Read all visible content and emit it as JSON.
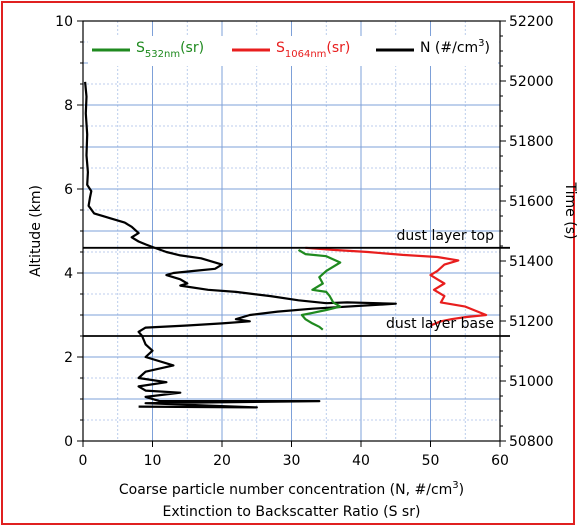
{
  "chart_data": {
    "type": "line",
    "xlabel": "Coarse particle number concentration (N, #/cm",
    "xlabel_sup": "3",
    "xlabel_suffix": ")",
    "xlabel2": "Extinction to Backscatter Ratio (S sr)",
    "ylabel": "Altitude (km)",
    "y2label": "Time (s)",
    "xlim": [
      0,
      60
    ],
    "ylim": [
      0,
      10
    ],
    "y2lim": [
      50800,
      52200
    ],
    "xticks": [
      0,
      10,
      20,
      30,
      40,
      50,
      60
    ],
    "yticks": [
      0,
      2,
      4,
      6,
      8,
      10
    ],
    "y2ticks": [
      50800,
      51000,
      51200,
      51400,
      51600,
      51800,
      52000,
      52200
    ],
    "grid": true,
    "legend_position": "top",
    "legend": [
      {
        "main": "S",
        "sub": "532nm",
        "tail": "(sr)",
        "color": "#1f8a1f"
      },
      {
        "main": "S",
        "sub": "1064nm",
        "tail": "(sr)",
        "color": "#e81e1e"
      },
      {
        "main": "N (#/cm",
        "sup": "3",
        "tail": ")",
        "color": "#000000"
      }
    ],
    "annotations": [
      {
        "text": "dust layer top",
        "altitude": 4.6
      },
      {
        "text": "dust layer base",
        "altitude": 2.5
      }
    ],
    "series": [
      {
        "name": "N (#/cm3)",
        "color": "#000000",
        "points": [
          [
            0.3,
            8.55
          ],
          [
            0.5,
            8.2
          ],
          [
            0.4,
            7.8
          ],
          [
            0.6,
            7.3
          ],
          [
            0.5,
            6.8
          ],
          [
            0.7,
            6.4
          ],
          [
            0.6,
            6.1
          ],
          [
            1.2,
            5.95
          ],
          [
            1.0,
            5.8
          ],
          [
            0.8,
            5.6
          ],
          [
            1.6,
            5.42
          ],
          [
            3,
            5.35
          ],
          [
            4,
            5.3
          ],
          [
            6,
            5.2
          ],
          [
            7,
            5.1
          ],
          [
            8,
            4.95
          ],
          [
            7,
            4.85
          ],
          [
            8,
            4.75
          ],
          [
            9,
            4.68
          ],
          [
            10,
            4.62
          ],
          [
            12,
            4.5
          ],
          [
            14,
            4.42
          ],
          [
            17,
            4.35
          ],
          [
            20,
            4.2
          ],
          [
            19,
            4.1
          ],
          [
            16,
            4.05
          ],
          [
            13,
            4.0
          ],
          [
            12,
            3.95
          ],
          [
            14,
            3.85
          ],
          [
            15,
            3.75
          ],
          [
            14,
            3.7
          ],
          [
            18,
            3.6
          ],
          [
            22,
            3.55
          ],
          [
            27,
            3.45
          ],
          [
            31,
            3.35
          ],
          [
            35,
            3.28
          ],
          [
            38,
            3.3
          ],
          [
            45,
            3.27
          ],
          [
            33,
            3.15
          ],
          [
            28,
            3.08
          ],
          [
            24,
            3.0
          ],
          [
            22,
            2.9
          ],
          [
            24,
            2.85
          ],
          [
            20,
            2.8
          ],
          [
            15,
            2.75
          ],
          [
            9,
            2.7
          ],
          [
            8,
            2.6
          ],
          [
            8.5,
            2.5
          ],
          [
            9,
            2.3
          ],
          [
            10,
            2.15
          ],
          [
            9,
            2.0
          ],
          [
            13,
            1.8
          ],
          [
            9,
            1.65
          ],
          [
            8,
            1.5
          ],
          [
            12,
            1.4
          ],
          [
            8,
            1.3
          ],
          [
            9,
            1.2
          ],
          [
            14,
            1.15
          ],
          [
            9,
            1.05
          ],
          [
            11,
            0.95
          ],
          [
            34,
            0.95
          ],
          [
            9,
            0.9
          ],
          [
            25,
            0.8
          ],
          [
            8,
            0.82
          ]
        ]
      },
      {
        "name": "S532nm (sr)",
        "color": "#1f8a1f",
        "points": [
          [
            31,
            4.55
          ],
          [
            32,
            4.45
          ],
          [
            35,
            4.4
          ],
          [
            37,
            4.25
          ],
          [
            35,
            4.05
          ],
          [
            34,
            3.9
          ],
          [
            34.5,
            3.75
          ],
          [
            33,
            3.6
          ],
          [
            35,
            3.55
          ],
          [
            35.5,
            3.45
          ],
          [
            36,
            3.3
          ],
          [
            37,
            3.2
          ],
          [
            35,
            3.12
          ],
          [
            33,
            3.05
          ],
          [
            31.5,
            3.0
          ],
          [
            32,
            2.9
          ],
          [
            33,
            2.8
          ],
          [
            34,
            2.72
          ],
          [
            34.5,
            2.65
          ]
        ]
      },
      {
        "name": "S1064nm (sr)",
        "color": "#e81e1e",
        "points": [
          [
            32,
            4.6
          ],
          [
            36,
            4.55
          ],
          [
            41,
            4.5
          ],
          [
            46,
            4.43
          ],
          [
            51,
            4.38
          ],
          [
            54,
            4.3
          ],
          [
            52,
            4.2
          ],
          [
            51,
            4.05
          ],
          [
            50,
            3.95
          ],
          [
            51,
            3.85
          ],
          [
            52,
            3.75
          ],
          [
            50.5,
            3.6
          ],
          [
            52,
            3.45
          ],
          [
            51.5,
            3.3
          ],
          [
            55,
            3.2
          ],
          [
            58,
            3.0
          ],
          [
            55,
            2.95
          ],
          [
            53,
            2.9
          ],
          [
            51.5,
            2.85
          ],
          [
            50,
            2.75
          ]
        ]
      }
    ]
  }
}
